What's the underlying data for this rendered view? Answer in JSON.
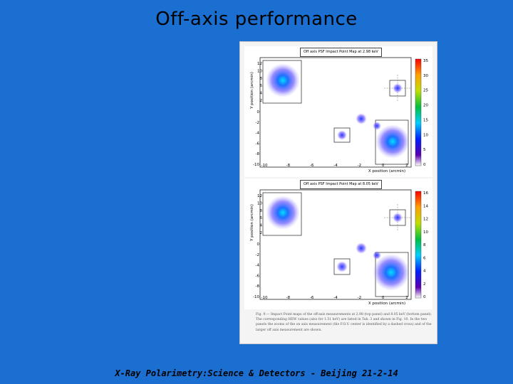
{
  "slide": {
    "title": "Off-axis performance",
    "footer": "X-Ray Polarimetry:Science & Detectors - Beijing 21-2-14"
  },
  "figure": {
    "caption": "Fig. 9.— Impact Point maps of the off-axis measurements at 2.98 (top panel) and 8.05 keV (bottom panel). The corresponding HEW values (also for 1.51 keV) are listed in Tab. 3 and shown in Fig. 10. In the two panels the zooms of the on axis measurement (the F.O.V. center is identified by a dashed cross) and of the larger off axis measurement are shown.",
    "panels": [
      {
        "id": "top",
        "title": "Off axis PSF Impact Point Map at 2.98 keV",
        "x_axis_label": "X position (arcmin)",
        "y_axis_label": "Y position (arcmin)",
        "x_ticks": [
          "-10",
          "-8",
          "-6",
          "-4",
          "-2",
          "0",
          "2"
        ],
        "y_ticks": [
          "0",
          "-2",
          "-4",
          "-6",
          "-8",
          "-10"
        ],
        "colorbar_ticks": [
          "35",
          "30",
          "25",
          "20",
          "15",
          "10",
          "5",
          "0"
        ],
        "inset_ticks": [
          "12",
          "10",
          "8",
          "6",
          "4",
          "2"
        ]
      },
      {
        "id": "bottom",
        "title": "Off axis PSF Impact Point Map at 8.05 keV",
        "x_axis_label": "X position (arcmin)",
        "y_axis_label": "Y position (arcmin)",
        "x_ticks": [
          "-10",
          "-8",
          "-6",
          "-4",
          "-2",
          "0",
          "2"
        ],
        "y_ticks": [
          "0",
          "-2",
          "-4",
          "-6",
          "-8",
          "-10"
        ],
        "colorbar_ticks": [
          "16",
          "14",
          "12",
          "10",
          "8",
          "6",
          "4",
          "2",
          "0"
        ],
        "inset_ticks": [
          "12",
          "10",
          "8",
          "6",
          "4",
          "2"
        ]
      }
    ],
    "colors": {
      "slide_background": "#1a6fd0",
      "figure_background": "#f4f4f4"
    }
  }
}
